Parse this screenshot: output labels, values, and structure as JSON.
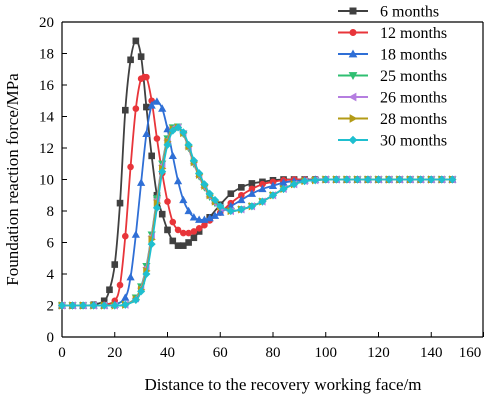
{
  "chart_data": {
    "type": "line",
    "title": "",
    "xlabel": "Distance to the recovery working face/m",
    "ylabel": "Foundation reaction force/MPa",
    "xlim": [
      0,
      160
    ],
    "ylim": [
      0,
      20
    ],
    "xticks": [
      0,
      20,
      40,
      60,
      80,
      100,
      120,
      140,
      160
    ],
    "yticks": [
      0,
      2,
      4,
      6,
      8,
      10,
      12,
      14,
      16,
      18,
      20
    ],
    "grid": false,
    "legend_position": "top-right",
    "series": [
      {
        "name": "6 months",
        "color": "#404040",
        "marker": "square",
        "x": [
          0,
          4,
          8,
          12,
          16,
          18,
          20,
          22,
          24,
          26,
          28,
          30,
          32,
          34,
          36,
          38,
          40,
          42,
          44,
          46,
          48,
          50,
          52,
          56,
          60,
          64,
          68,
          72,
          76,
          80,
          84,
          88,
          92,
          96,
          100,
          104,
          108,
          112,
          116,
          120,
          124,
          128,
          132,
          136,
          140,
          144,
          148
        ],
        "y": [
          2,
          2,
          2,
          2.05,
          2.3,
          3,
          4.6,
          8.5,
          14.4,
          17.6,
          18.8,
          17.8,
          14.6,
          11.5,
          9,
          7.8,
          6.8,
          6.1,
          5.8,
          5.8,
          6,
          6.3,
          6.7,
          7.6,
          8.4,
          9.1,
          9.5,
          9.75,
          9.85,
          9.95,
          10,
          10,
          10,
          10,
          10,
          10,
          10,
          10,
          10,
          10,
          10,
          10,
          10,
          10,
          10,
          10,
          10
        ]
      },
      {
        "name": "12 months",
        "color": "#e8353a",
        "marker": "circle",
        "x": [
          0,
          4,
          8,
          12,
          16,
          20,
          22,
          24,
          26,
          28,
          30,
          32,
          34,
          36,
          38,
          40,
          42,
          44,
          46,
          48,
          50,
          52,
          54,
          56,
          60,
          64,
          68,
          72,
          76,
          80,
          84,
          88,
          92,
          96,
          100,
          104,
          108,
          112,
          116,
          120,
          124,
          128,
          132,
          136,
          140,
          144,
          148
        ],
        "y": [
          2,
          2,
          2,
          2,
          2.05,
          2.3,
          3.3,
          6.4,
          10.8,
          14.5,
          16.4,
          16.5,
          15,
          12.6,
          10.4,
          8.6,
          7.3,
          6.8,
          6.6,
          6.6,
          6.7,
          6.9,
          7.1,
          7.4,
          7.9,
          8.5,
          9,
          9.4,
          9.7,
          9.85,
          9.95,
          10,
          10,
          10,
          10,
          10,
          10,
          10,
          10,
          10,
          10,
          10,
          10,
          10,
          10,
          10,
          10
        ]
      },
      {
        "name": "18 months",
        "color": "#2f6fd6",
        "marker": "triangle-up",
        "x": [
          0,
          4,
          8,
          12,
          16,
          20,
          24,
          26,
          28,
          30,
          32,
          34,
          36,
          38,
          40,
          42,
          44,
          46,
          48,
          50,
          52,
          54,
          56,
          58,
          60,
          64,
          68,
          72,
          76,
          80,
          84,
          88,
          92,
          96,
          100,
          104,
          108,
          112,
          116,
          120,
          124,
          128,
          132,
          136,
          140,
          144,
          148
        ],
        "y": [
          2,
          2,
          2,
          2,
          2,
          2.05,
          2.5,
          3.8,
          6.5,
          9.8,
          12.9,
          14.7,
          14.95,
          14.5,
          13.2,
          11.5,
          9.9,
          8.7,
          8,
          7.6,
          7.45,
          7.45,
          7.55,
          7.7,
          7.9,
          8.3,
          8.7,
          9.1,
          9.4,
          9.6,
          9.8,
          9.9,
          9.95,
          10,
          10,
          10,
          10,
          10,
          10,
          10,
          10,
          10,
          10,
          10,
          10,
          10,
          10
        ]
      },
      {
        "name": "25 months",
        "color": "#2fbf71",
        "marker": "triangle-down",
        "x": [
          0,
          4,
          8,
          12,
          16,
          20,
          24,
          28,
          30,
          32,
          34,
          36,
          38,
          40,
          42,
          44,
          46,
          48,
          50,
          52,
          54,
          56,
          58,
          60,
          64,
          68,
          72,
          76,
          80,
          84,
          88,
          92,
          96,
          100,
          104,
          108,
          112,
          116,
          120,
          124,
          128,
          132,
          136,
          140,
          144,
          148
        ],
        "y": [
          2,
          2,
          2,
          2,
          2,
          2,
          2.05,
          2.5,
          3.2,
          4.5,
          6.5,
          8.8,
          11,
          12.6,
          13.3,
          13.35,
          12.9,
          12,
          11,
          10.2,
          9.5,
          8.9,
          8.5,
          8.2,
          8,
          8.1,
          8.3,
          8.6,
          9,
          9.4,
          9.7,
          9.9,
          9.95,
          10,
          10,
          10,
          10,
          10,
          10,
          10,
          10,
          10,
          10,
          10,
          10,
          10
        ]
      },
      {
        "name": "26 months",
        "color": "#b57ee0",
        "marker": "triangle-left",
        "x": [
          0,
          4,
          8,
          12,
          16,
          20,
          24,
          28,
          30,
          32,
          34,
          36,
          38,
          40,
          42,
          44,
          46,
          48,
          50,
          52,
          54,
          56,
          58,
          60,
          64,
          68,
          72,
          76,
          80,
          84,
          88,
          92,
          96,
          100,
          104,
          108,
          112,
          116,
          120,
          124,
          128,
          132,
          136,
          140,
          144,
          148
        ],
        "y": [
          2,
          2,
          2,
          2,
          2,
          2,
          2.05,
          2.45,
          3.1,
          4.4,
          6.4,
          8.7,
          10.9,
          12.5,
          13.25,
          13.3,
          12.9,
          12,
          11,
          10.2,
          9.5,
          8.9,
          8.5,
          8.2,
          8,
          8.1,
          8.3,
          8.6,
          9,
          9.4,
          9.7,
          9.9,
          9.95,
          10,
          10,
          10,
          10,
          10,
          10,
          10,
          10,
          10,
          10,
          10,
          10,
          10
        ]
      },
      {
        "name": "28 months",
        "color": "#b39b16",
        "marker": "triangle-right",
        "x": [
          0,
          4,
          8,
          12,
          16,
          20,
          24,
          28,
          30,
          32,
          34,
          36,
          38,
          40,
          42,
          44,
          46,
          48,
          50,
          52,
          54,
          56,
          58,
          60,
          64,
          68,
          72,
          76,
          80,
          84,
          88,
          92,
          96,
          100,
          104,
          108,
          112,
          116,
          120,
          124,
          128,
          132,
          136,
          140,
          144,
          148
        ],
        "y": [
          2,
          2,
          2,
          2,
          2,
          2,
          2.05,
          2.4,
          3,
          4.2,
          6.2,
          8.5,
          10.7,
          12.4,
          13.2,
          13.3,
          12.95,
          12.1,
          11.1,
          10.3,
          9.6,
          9,
          8.6,
          8.3,
          8,
          8.1,
          8.3,
          8.6,
          9,
          9.4,
          9.7,
          9.9,
          9.95,
          10,
          10,
          10,
          10,
          10,
          10,
          10,
          10,
          10,
          10,
          10,
          10,
          10
        ]
      },
      {
        "name": "30 months",
        "color": "#1fbfcf",
        "marker": "diamond",
        "x": [
          0,
          4,
          8,
          12,
          16,
          20,
          24,
          28,
          30,
          32,
          34,
          36,
          38,
          40,
          42,
          44,
          46,
          48,
          50,
          52,
          54,
          56,
          58,
          60,
          64,
          68,
          72,
          76,
          80,
          84,
          88,
          92,
          96,
          100,
          104,
          108,
          112,
          116,
          120,
          124,
          128,
          132,
          136,
          140,
          144,
          148
        ],
        "y": [
          2,
          2,
          2,
          2,
          2,
          2,
          2.05,
          2.35,
          2.9,
          4,
          5.9,
          8.2,
          10.5,
          12.2,
          13.1,
          13.3,
          13,
          12.2,
          11.2,
          10.4,
          9.7,
          9.1,
          8.7,
          8.3,
          8,
          8.1,
          8.3,
          8.6,
          9,
          9.4,
          9.7,
          9.9,
          9.95,
          10,
          10,
          10,
          10,
          10,
          10,
          10,
          10,
          10,
          10,
          10,
          10,
          10
        ]
      }
    ]
  }
}
